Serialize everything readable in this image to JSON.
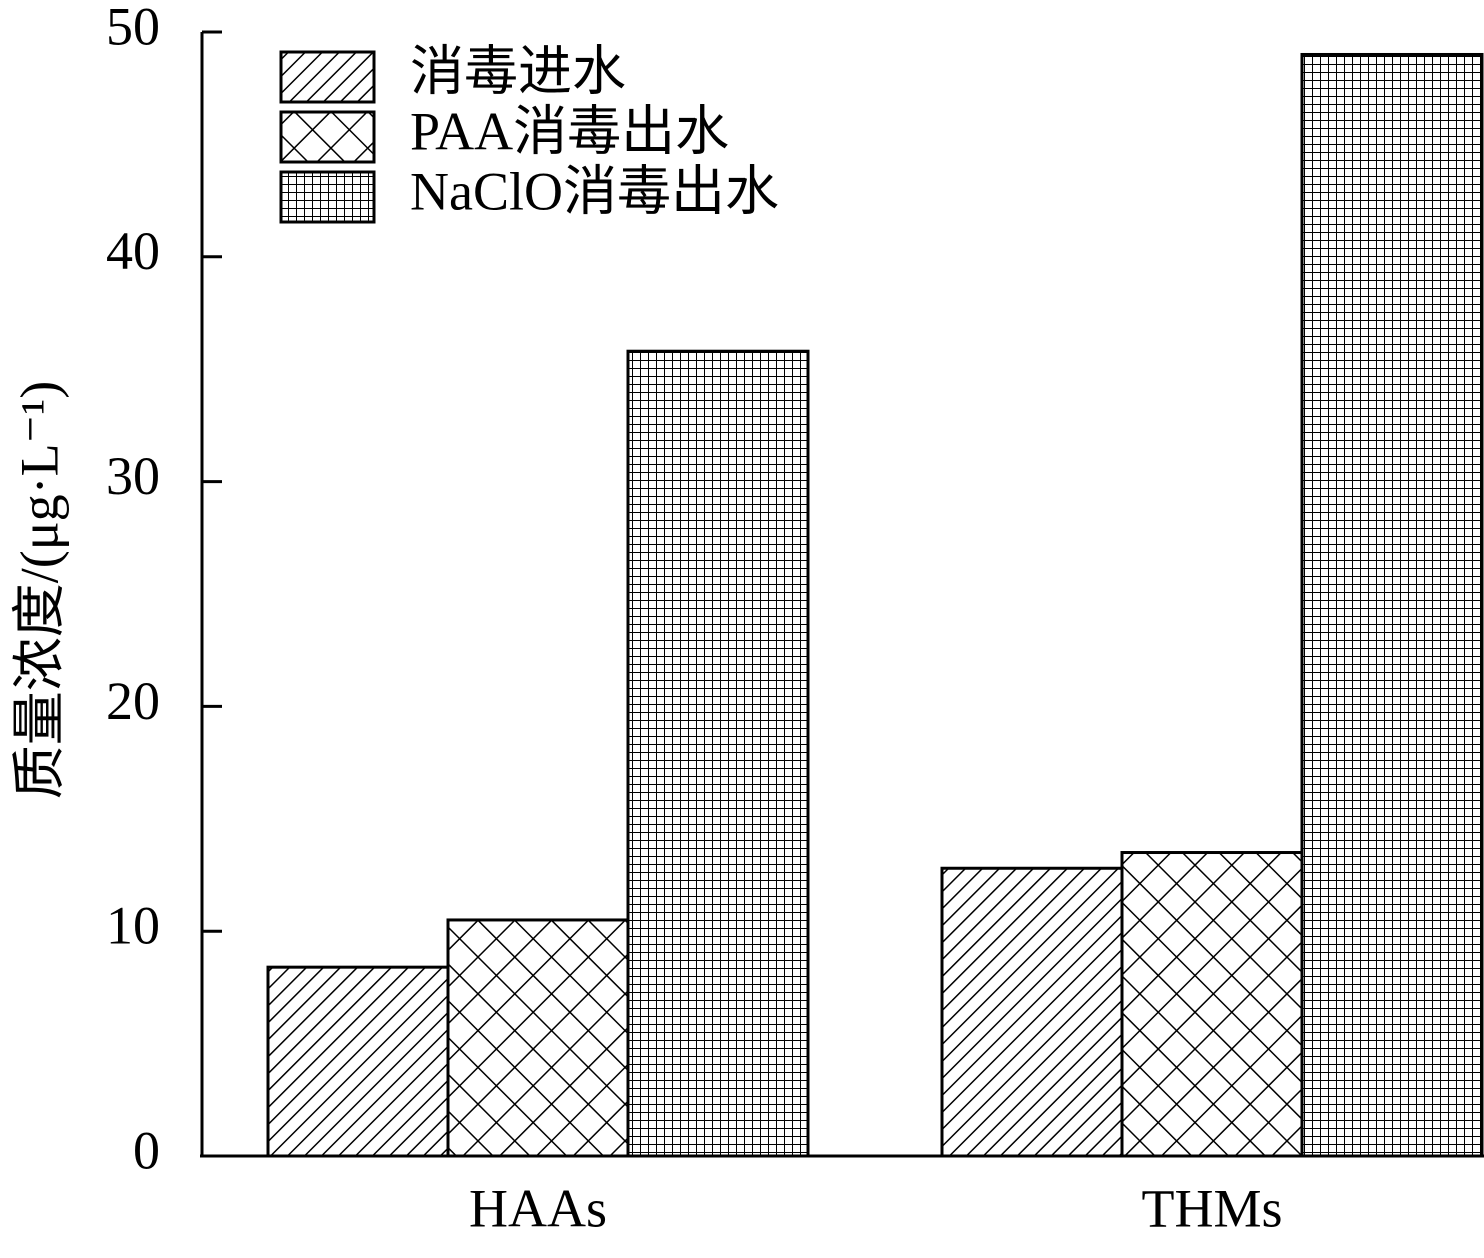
{
  "chart_data": {
    "type": "bar",
    "y_label": "质量浓度/(μg·L⁻¹)",
    "categories": [
      "HAAs",
      "THMs"
    ],
    "series": [
      {
        "name": "消毒进水",
        "color": "#000000",
        "pattern": "hatch",
        "values": [
          8.4,
          12.8
        ]
      },
      {
        "name": "PAA消毒出水",
        "color": "#000000",
        "pattern": "crosshatch",
        "values": [
          10.5,
          13.5
        ]
      },
      {
        "name": "NaClO消毒出水",
        "color": "#000000",
        "pattern": "grid",
        "values": [
          35.8,
          49
        ]
      }
    ],
    "ylim": [
      0,
      50
    ],
    "yticks": [
      0,
      10,
      20,
      30,
      40,
      50
    ],
    "grid": false,
    "legend": "upper left"
  }
}
